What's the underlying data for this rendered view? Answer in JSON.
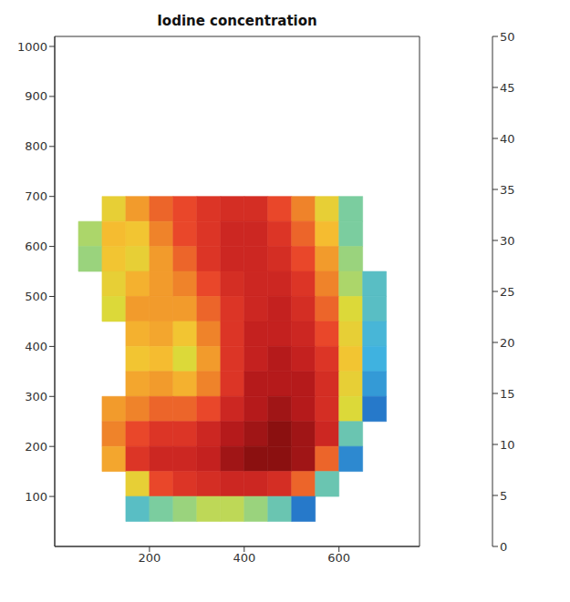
{
  "chart_data": {
    "type": "heatmap",
    "title": "Iodine concentration",
    "xlim": [
      0,
      770
    ],
    "xticks": [
      200,
      400,
      600
    ],
    "ylim": [
      0,
      1020
    ],
    "yticks": [
      100,
      200,
      300,
      400,
      500,
      600,
      700,
      800,
      900,
      1000
    ],
    "grid": false,
    "x": [
      75,
      125,
      175,
      225,
      275,
      325,
      375,
      425,
      475,
      525,
      575,
      625,
      675
    ],
    "y": [
      675,
      625,
      575,
      525,
      475,
      425,
      375,
      325,
      275,
      225,
      175,
      125,
      75
    ],
    "cells": [
      [
        null,
        30,
        36,
        40,
        42,
        44,
        45,
        45,
        42,
        38,
        30,
        22,
        null
      ],
      [
        25,
        33,
        32,
        38,
        42,
        44,
        46,
        46,
        44,
        40,
        33,
        22,
        null
      ],
      [
        24,
        32,
        30,
        36,
        40,
        44,
        46,
        46,
        45,
        42,
        36,
        24,
        null
      ],
      [
        null,
        30,
        34,
        36,
        38,
        42,
        45,
        46,
        46,
        44,
        38,
        25,
        18
      ],
      [
        null,
        28,
        36,
        36,
        36,
        40,
        44,
        46,
        47,
        45,
        40,
        28,
        18
      ],
      [
        null,
        null,
        34,
        35,
        32,
        38,
        44,
        47,
        47,
        46,
        42,
        30,
        16
      ],
      [
        null,
        null,
        32,
        33,
        28,
        36,
        44,
        47,
        48,
        47,
        44,
        32,
        15
      ],
      [
        null,
        null,
        35,
        36,
        34,
        38,
        44,
        48,
        48,
        48,
        45,
        30,
        12
      ],
      [
        null,
        36,
        38,
        40,
        40,
        42,
        46,
        48,
        49,
        48,
        45,
        28,
        8
      ],
      [
        null,
        38,
        42,
        44,
        44,
        46,
        48,
        49,
        50,
        49,
        46,
        20,
        null
      ],
      [
        null,
        35,
        44,
        46,
        46,
        47,
        49,
        50,
        50,
        49,
        40,
        10,
        null
      ],
      [
        null,
        null,
        30,
        42,
        44,
        45,
        46,
        46,
        45,
        40,
        20,
        null,
        null
      ],
      [
        null,
        null,
        18,
        22,
        24,
        26,
        26,
        24,
        20,
        8,
        null,
        null,
        null
      ]
    ],
    "clim": [
      0,
      50
    ],
    "cticks": [
      0,
      5,
      10,
      15,
      20,
      25,
      30,
      35,
      40,
      45,
      50
    ]
  }
}
